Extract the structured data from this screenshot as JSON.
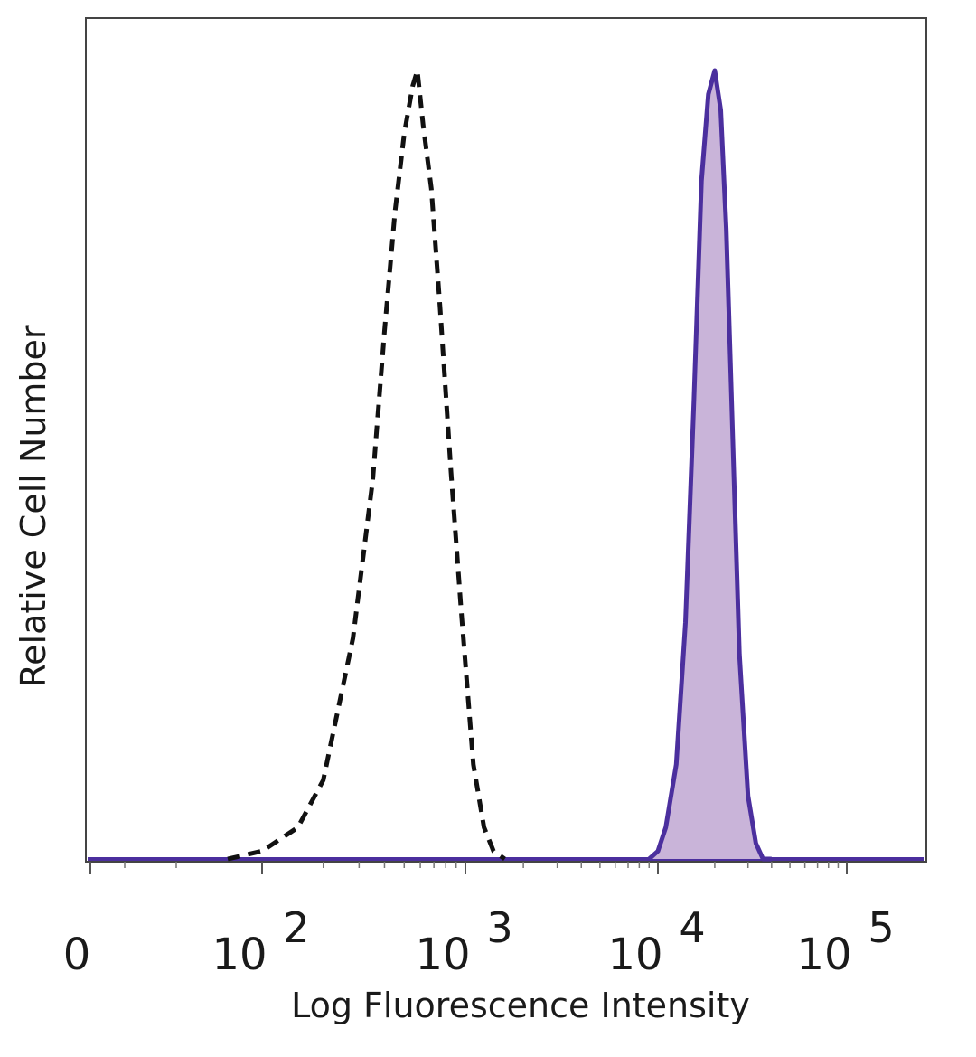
{
  "chart_data": {
    "type": "area",
    "xlabel": "Log Fluorescence Intensity",
    "ylabel": "Relative Cell Number",
    "x_scale": "log",
    "xlim": [
      0,
      200000
    ],
    "ylim": [
      0,
      100
    ],
    "grid": false,
    "legend": "none",
    "tick_labels": [
      {
        "base": "0",
        "exp": "",
        "value": 0
      },
      {
        "base": "10",
        "exp": "2",
        "value": 100
      },
      {
        "base": "10",
        "exp": "3",
        "value": 1000
      },
      {
        "base": "10",
        "exp": "4",
        "value": 10000
      },
      {
        "base": "10",
        "exp": "5",
        "value": 100000
      }
    ],
    "series": [
      {
        "style": "dashed",
        "color": "#111111",
        "filled": false,
        "x": [
          80,
          100,
          150,
          200,
          280,
          350,
          400,
          450,
          500,
          550,
          580,
          620,
          680,
          750,
          850,
          950,
          1100,
          1250,
          1400,
          1600
        ],
        "y": [
          0,
          1,
          4,
          10,
          28,
          48,
          67,
          82,
          92,
          98,
          100,
          93,
          85,
          70,
          49,
          32,
          12,
          4,
          1,
          0
        ]
      },
      {
        "style": "solid",
        "color": "#4b2f9e",
        "fill_color": "#c9b4d9",
        "filled": true,
        "x": [
          9000,
          10000,
          11000,
          12500,
          14000,
          15500,
          17000,
          18500,
          20000,
          21500,
          23000,
          25000,
          27000,
          30000,
          33000,
          36000,
          40000
        ],
        "y": [
          0,
          1,
          4,
          12,
          30,
          58,
          86,
          97,
          100,
          95,
          80,
          52,
          26,
          8,
          2,
          0,
          0
        ]
      }
    ]
  }
}
